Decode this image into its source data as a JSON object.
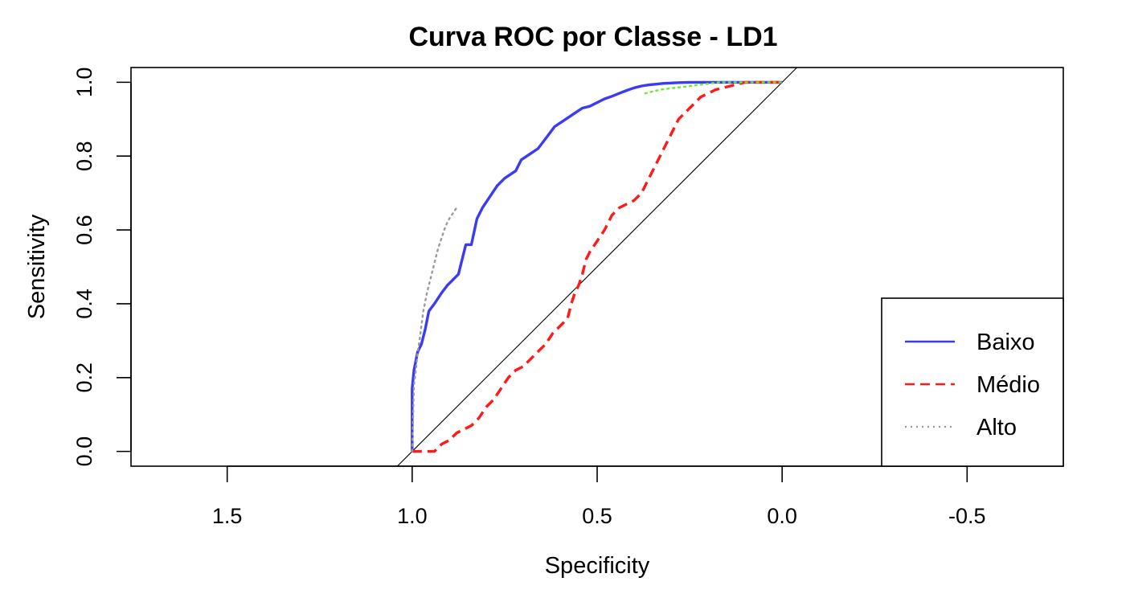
{
  "chart_data": {
    "type": "line",
    "title": "Curva ROC por Classe - LD1",
    "xlabel": "Specificity",
    "ylabel": "Sensitivity",
    "xlim": [
      1.76,
      -0.76
    ],
    "ylim": [
      -0.04,
      1.04
    ],
    "x_reversed": true,
    "x_ticks": [
      1.5,
      1.0,
      0.5,
      0.0,
      -0.5
    ],
    "x_tick_labels": [
      "1.5",
      "1.0",
      "0.5",
      "0.0",
      "-0.5"
    ],
    "y_ticks": [
      0.0,
      0.2,
      0.4,
      0.6,
      0.8,
      1.0
    ],
    "y_tick_labels": [
      "0.0",
      "0.2",
      "0.4",
      "0.6",
      "0.8",
      "1.0"
    ],
    "grid": false,
    "legend_position": "bottom-right",
    "diagonal": {
      "from": [
        1.0,
        0.0
      ],
      "to": [
        0.0,
        1.0
      ],
      "color": "#000000"
    },
    "series": [
      {
        "name": "Baixo",
        "color": "#3b3bf5",
        "dash": "solid",
        "x": [
          1.0,
          1.0,
          0.995,
          0.985,
          0.975,
          0.965,
          0.955,
          0.94,
          0.92,
          0.905,
          0.895,
          0.885,
          0.875,
          0.865,
          0.855,
          0.84,
          0.825,
          0.81,
          0.79,
          0.77,
          0.75,
          0.735,
          0.72,
          0.705,
          0.69,
          0.675,
          0.66,
          0.645,
          0.63,
          0.615,
          0.6,
          0.585,
          0.57,
          0.555,
          0.54,
          0.52,
          0.5,
          0.48,
          0.46,
          0.44,
          0.42,
          0.4,
          0.38,
          0.36,
          0.34,
          0.32,
          0.3,
          0.28,
          0.25,
          0.2,
          0.15,
          0.1,
          0.05,
          0.0
        ],
        "y": [
          0.0,
          0.17,
          0.22,
          0.27,
          0.29,
          0.33,
          0.38,
          0.4,
          0.43,
          0.45,
          0.46,
          0.47,
          0.48,
          0.52,
          0.56,
          0.56,
          0.63,
          0.66,
          0.69,
          0.72,
          0.74,
          0.75,
          0.76,
          0.79,
          0.8,
          0.81,
          0.82,
          0.84,
          0.86,
          0.88,
          0.89,
          0.9,
          0.91,
          0.92,
          0.93,
          0.935,
          0.945,
          0.955,
          0.962,
          0.97,
          0.978,
          0.985,
          0.99,
          0.993,
          0.995,
          0.997,
          0.998,
          0.999,
          1.0,
          1.0,
          1.0,
          1.0,
          1.0,
          1.0
        ]
      },
      {
        "name": "Médio",
        "color": "#ff1a1a",
        "dash": "dashed",
        "x": [
          1.0,
          0.98,
          0.96,
          0.94,
          0.92,
          0.9,
          0.88,
          0.86,
          0.84,
          0.82,
          0.8,
          0.78,
          0.76,
          0.74,
          0.72,
          0.7,
          0.68,
          0.66,
          0.64,
          0.62,
          0.6,
          0.58,
          0.57,
          0.56,
          0.55,
          0.54,
          0.53,
          0.52,
          0.5,
          0.48,
          0.46,
          0.44,
          0.42,
          0.4,
          0.38,
          0.36,
          0.34,
          0.32,
          0.3,
          0.28,
          0.25,
          0.22,
          0.18,
          0.14,
          0.1,
          0.05,
          0.0
        ],
        "y": [
          0.0,
          0.0,
          0.0,
          0.0,
          0.02,
          0.03,
          0.05,
          0.06,
          0.07,
          0.09,
          0.12,
          0.14,
          0.17,
          0.2,
          0.22,
          0.23,
          0.25,
          0.27,
          0.29,
          0.32,
          0.34,
          0.36,
          0.4,
          0.43,
          0.45,
          0.48,
          0.52,
          0.54,
          0.57,
          0.6,
          0.64,
          0.66,
          0.67,
          0.68,
          0.7,
          0.74,
          0.78,
          0.82,
          0.86,
          0.9,
          0.93,
          0.96,
          0.98,
          0.99,
          1.0,
          1.0,
          1.0
        ]
      },
      {
        "name": "Alto",
        "color": "#9a9a9a",
        "dash": "dotted",
        "x": [
          1.0,
          0.995,
          0.99,
          0.985,
          0.98,
          0.975,
          0.97,
          0.96,
          0.95,
          0.94,
          0.93,
          0.92,
          0.91,
          0.9,
          0.88
        ],
        "y": [
          0.0,
          0.18,
          0.22,
          0.27,
          0.3,
          0.34,
          0.38,
          0.43,
          0.47,
          0.51,
          0.55,
          0.58,
          0.61,
          0.63,
          0.66
        ]
      },
      {
        "name": "",
        "color": "#66ee33",
        "dash": "dotted",
        "x": [
          0.37,
          0.33,
          0.29,
          0.25,
          0.21,
          0.17,
          0.13,
          0.09,
          0.05,
          0.0
        ],
        "y": [
          0.97,
          0.98,
          0.985,
          0.99,
          0.995,
          1.0,
          1.0,
          1.0,
          1.0,
          1.0
        ]
      }
    ]
  }
}
